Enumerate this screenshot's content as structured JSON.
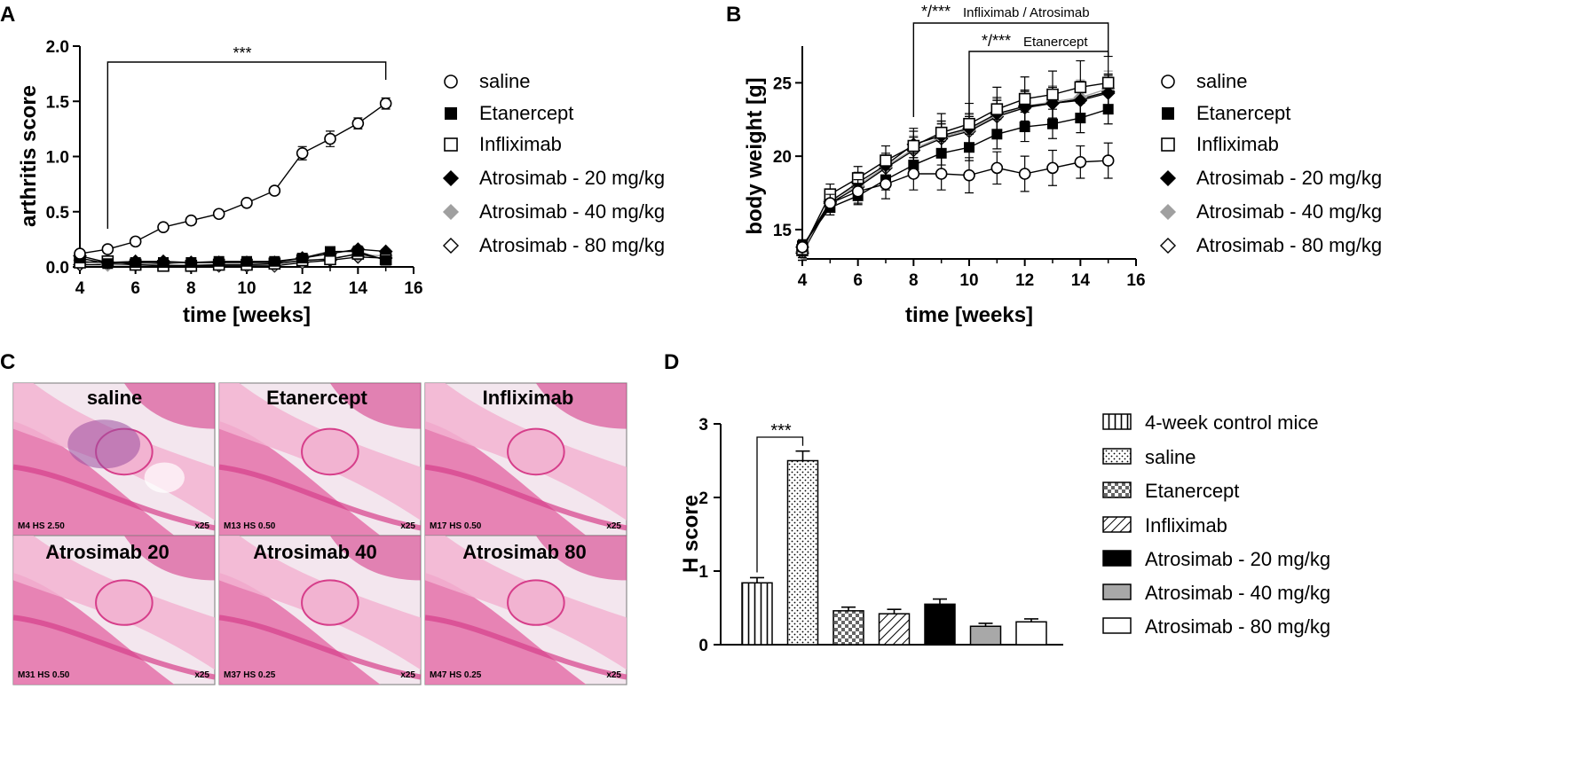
{
  "colors": {
    "axis": "#000000",
    "gray_marker": "#a0a0a0",
    "bar_gray": "#a8a8a8",
    "tissue_bg": "#f3e6ee",
    "tissue_light": "#f2b3d1",
    "tissue_mid": "#e678ad",
    "tissue_dark": "#d63e8a",
    "tissue_purple": "#9a4fa0",
    "panel_border": "#8c8c8c"
  },
  "panel_letters": {
    "a": "A",
    "b": "B",
    "c": "C",
    "d": "D"
  },
  "legend_groups": [
    "saline",
    "Etanercept",
    "Infliximab",
    "Atrosimab - 20 mg/kg",
    "Atrosimab - 40 mg/kg",
    "Atrosimab - 80 mg/kg"
  ],
  "chart_data": [
    {
      "panel": "A",
      "type": "line",
      "title": "",
      "xlabel": "time [weeks]",
      "ylabel": "arthritis score",
      "xlim": [
        4,
        16
      ],
      "ylim": [
        0,
        2.0
      ],
      "xticks": [
        4,
        6,
        8,
        10,
        12,
        14,
        16
      ],
      "yticks": [
        "0.0",
        "0.5",
        "1.0",
        "1.5",
        "2.0"
      ],
      "significance": [
        {
          "label": "***",
          "from": 5,
          "to": 15
        }
      ],
      "x": [
        4,
        5,
        6,
        7,
        8,
        9,
        10,
        11,
        12,
        13,
        14,
        15
      ],
      "series": [
        {
          "name": "saline",
          "marker": "circle-open",
          "values": [
            0.12,
            0.16,
            0.23,
            0.36,
            0.42,
            0.48,
            0.58,
            0.69,
            1.03,
            1.16,
            1.3,
            1.48
          ],
          "err": [
            0.02,
            0.02,
            0.02,
            0.02,
            0.02,
            0.02,
            0.02,
            0.02,
            0.06,
            0.07,
            0.05,
            0.05
          ]
        },
        {
          "name": "Etanercept",
          "marker": "square-filled",
          "values": [
            0.08,
            0.03,
            0.04,
            0.04,
            0.04,
            0.05,
            0.05,
            0.05,
            0.08,
            0.14,
            0.14,
            0.06
          ],
          "err": [
            0.02,
            0.01,
            0.01,
            0.01,
            0.01,
            0.01,
            0.01,
            0.01,
            0.02,
            0.02,
            0.03,
            0.02
          ]
        },
        {
          "name": "Infliximab",
          "marker": "square-open",
          "values": [
            0.04,
            0.05,
            0.02,
            0.01,
            0.01,
            0.02,
            0.02,
            0.03,
            0.06,
            0.07,
            0.12,
            0.07
          ],
          "err": [
            0.01,
            0.01,
            0.01,
            0.01,
            0.01,
            0.01,
            0.01,
            0.01,
            0.02,
            0.02,
            0.03,
            0.02
          ]
        },
        {
          "name": "Atrosimab - 20 mg/kg",
          "marker": "diamond-filled",
          "values": [
            0.1,
            0.04,
            0.05,
            0.05,
            0.04,
            0.04,
            0.04,
            0.04,
            0.08,
            0.12,
            0.16,
            0.14
          ],
          "err": [
            0.02,
            0.01,
            0.01,
            0.01,
            0.01,
            0.01,
            0.01,
            0.01,
            0.02,
            0.02,
            0.03,
            0.02
          ]
        },
        {
          "name": "Atrosimab - 40 mg/kg",
          "marker": "diamond-gray",
          "values": [
            0.06,
            0.02,
            0.03,
            0.02,
            0.02,
            0.02,
            0.02,
            0.02,
            0.05,
            0.08,
            0.11,
            0.1
          ],
          "err": [
            0.01,
            0.01,
            0.01,
            0.01,
            0.01,
            0.01,
            0.01,
            0.01,
            0.02,
            0.02,
            0.02,
            0.02
          ]
        },
        {
          "name": "Atrosimab - 80 mg/kg",
          "marker": "diamond-open",
          "values": [
            0.02,
            0.02,
            0.02,
            0.03,
            0.01,
            0.01,
            0.01,
            0.01,
            0.04,
            0.06,
            0.09,
            0.08
          ],
          "err": [
            0.01,
            0.01,
            0.01,
            0.01,
            0.01,
            0.01,
            0.01,
            0.01,
            0.01,
            0.02,
            0.02,
            0.02
          ]
        }
      ]
    },
    {
      "panel": "B",
      "type": "line",
      "title": "",
      "xlabel": "time [weeks]",
      "ylabel": "body weight [g]",
      "xlim": [
        4,
        16
      ],
      "ylim": [
        13,
        27.5
      ],
      "xticks": [
        4,
        6,
        8,
        10,
        12,
        14,
        16
      ],
      "yticks": [
        "15",
        "20",
        "25"
      ],
      "significance": [
        {
          "label": "*/***",
          "sublabel": "Infliximab / Atrosimab",
          "from": 8,
          "to": 15
        },
        {
          "label": "*/***",
          "sublabel": "Etanercept",
          "from": 10,
          "to": 15
        }
      ],
      "x": [
        4,
        5,
        6,
        7,
        8,
        9,
        10,
        11,
        12,
        13,
        14,
        15
      ],
      "series": [
        {
          "name": "saline",
          "marker": "circle-open",
          "values": [
            13.8,
            16.8,
            17.6,
            18.1,
            18.8,
            18.8,
            18.7,
            19.2,
            18.8,
            19.2,
            19.6,
            19.7
          ],
          "err": [
            0.5,
            0.6,
            0.8,
            1.0,
            1.1,
            1.1,
            1.2,
            1.1,
            1.2,
            1.2,
            1.1,
            1.2
          ]
        },
        {
          "name": "Etanercept",
          "marker": "square-filled",
          "values": [
            13.9,
            16.5,
            17.3,
            18.4,
            19.4,
            20.2,
            20.6,
            21.5,
            22.0,
            22.2,
            22.6,
            23.2
          ],
          "err": [
            0.4,
            0.5,
            0.6,
            0.7,
            0.8,
            0.8,
            0.9,
            1.0,
            1.0,
            1.0,
            1.0,
            1.0
          ]
        },
        {
          "name": "Infliximab",
          "marker": "square-open",
          "values": [
            13.6,
            17.4,
            18.5,
            19.7,
            20.7,
            21.6,
            22.2,
            23.2,
            23.9,
            24.2,
            24.7,
            25.0
          ],
          "err": [
            0.5,
            0.7,
            0.8,
            1.0,
            1.2,
            1.3,
            1.4,
            1.5,
            1.5,
            1.6,
            1.8,
            1.8
          ]
        },
        {
          "name": "Atrosimab - 20 mg/kg",
          "marker": "diamond-filled",
          "values": [
            13.8,
            16.9,
            18.2,
            19.4,
            20.8,
            21.4,
            21.9,
            22.9,
            23.4,
            23.6,
            23.8,
            24.3
          ],
          "err": [
            0.5,
            0.6,
            0.7,
            0.8,
            0.9,
            1.0,
            1.0,
            1.1,
            1.1,
            1.1,
            1.2,
            1.2
          ]
        },
        {
          "name": "Atrosimab - 40 mg/kg",
          "marker": "diamond-gray",
          "values": [
            13.5,
            17.0,
            18.0,
            19.3,
            20.5,
            21.3,
            21.8,
            22.8,
            23.4,
            23.7,
            24.0,
            24.6
          ],
          "err": [
            0.5,
            0.6,
            0.7,
            0.8,
            0.9,
            1.0,
            1.0,
            1.1,
            1.1,
            1.1,
            1.2,
            1.2
          ]
        },
        {
          "name": "Atrosimab - 80 mg/kg",
          "marker": "diamond-open",
          "values": [
            13.4,
            16.8,
            17.9,
            19.2,
            20.4,
            21.2,
            21.7,
            22.7,
            23.3,
            23.6,
            23.9,
            24.4
          ],
          "err": [
            0.5,
            0.6,
            0.7,
            0.8,
            0.9,
            1.0,
            1.0,
            1.1,
            1.1,
            1.1,
            1.2,
            1.2
          ]
        }
      ]
    },
    {
      "panel": "D",
      "type": "bar",
      "title": "",
      "xlabel": "",
      "ylabel": "H score",
      "ylim": [
        0,
        3
      ],
      "yticks": [
        "0",
        "1",
        "2",
        "3"
      ],
      "categories": [
        "4-week control mice",
        "saline",
        "Etanercept",
        "Infliximab",
        "Atrosimab - 20 mg/kg",
        "Atrosimab - 40 mg/kg",
        "Atrosimab - 80 mg/kg"
      ],
      "values": [
        0.84,
        2.5,
        0.46,
        0.42,
        0.55,
        0.25,
        0.31
      ],
      "err": [
        0.07,
        0.13,
        0.05,
        0.06,
        0.07,
        0.04,
        0.04
      ],
      "fills": [
        "vertical-lines",
        "dots",
        "checker",
        "diagonal",
        "black",
        "gray",
        "white"
      ],
      "significance": [
        {
          "label": "***",
          "between": [
            "4-week control mice",
            "saline"
          ]
        }
      ]
    }
  ],
  "histology": {
    "tiles": [
      {
        "title": "saline",
        "caption": "M4 HS 2.50",
        "mag": "x25",
        "severity": "high"
      },
      {
        "title": "Etanercept",
        "caption": "M13 HS 0.50",
        "mag": "x25",
        "severity": "low"
      },
      {
        "title": "Infliximab",
        "caption": "M17 HS 0.50",
        "mag": "x25",
        "severity": "low"
      },
      {
        "title": "Atrosimab 20",
        "caption": "M31 HS 0.50",
        "mag": "x25",
        "severity": "low"
      },
      {
        "title": "Atrosimab 40",
        "caption": "M37 HS 0.25",
        "mag": "x25",
        "severity": "low"
      },
      {
        "title": "Atrosimab 80",
        "caption": "M47 HS 0.25",
        "mag": "x25",
        "severity": "low"
      }
    ]
  }
}
